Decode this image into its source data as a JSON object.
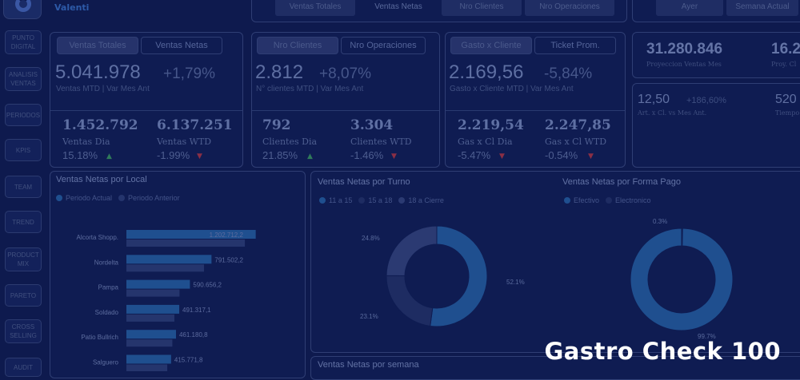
{
  "brand": {
    "name": "Valenti"
  },
  "sidebar": {
    "items": [
      {
        "label": "PUNTO DIGITAL"
      },
      {
        "label": "ANALISIS VENTAS"
      },
      {
        "label": "PERIODOS"
      },
      {
        "label": "KPIS"
      },
      {
        "label": "TEAM"
      },
      {
        "label": "TREND"
      },
      {
        "label": "PRODUCT MIX"
      },
      {
        "label": "PARETO"
      },
      {
        "label": "CROSS SELLING"
      },
      {
        "label": "AUDIT"
      }
    ]
  },
  "top_tabs": [
    "Ventas Totales",
    "Ventas Netas",
    "Nro Clientes",
    "Nro Operaciones",
    "Ayer",
    "Semana Actual"
  ],
  "kpi_ventas": {
    "tabs": [
      "Ventas Totales",
      "Ventas Netas"
    ],
    "value": "5.041.978",
    "variation": "+1,79%",
    "caption": "Ventas MTD | Var Mes Ant",
    "left": {
      "value": "1.452.792",
      "label": "Ventas Dia",
      "pct": "15.18%"
    },
    "right": {
      "value": "6.137.251",
      "label": "Ventas WTD",
      "pct": "-1.99%"
    }
  },
  "kpi_clientes": {
    "tabs": [
      "Nro Clientes",
      "Nro Operaciones"
    ],
    "value": "2.812",
    "variation": "+8,07%",
    "caption": "N° clientes MTD | Var Mes Ant",
    "left": {
      "value": "792",
      "label": "Clientes Dia",
      "pct": "21.85%"
    },
    "right": {
      "value": "3.304",
      "label": "Clientes WTD",
      "pct": "-1.46%"
    }
  },
  "kpi_gasto": {
    "tabs": [
      "Gasto x Cliente",
      "Ticket Prom."
    ],
    "value": "2.169,56",
    "variation": "-5,84%",
    "caption": "Gasto x Cliente MTD | Var Mes Ant",
    "left": {
      "value": "2.219,54",
      "label": "Gas x Cl Dia",
      "pct": "-5.47%"
    },
    "right": {
      "value": "2.247,85",
      "label": "Gas x Cl WTD",
      "pct": "-0.54%"
    }
  },
  "projection": {
    "value1": "31.280.846",
    "label1": "Proyeccion Ventas Mes",
    "value2": "16.2",
    "label2": "Proy. Cl",
    "value3": "12,50",
    "var3": "+186,60%",
    "label3": "Art. x Cl. vs Mes Ant.",
    "value4": "520",
    "label4": "Tiempo"
  },
  "colors": {
    "up": "#2f7a5a",
    "down": "#8a2f45",
    "accent": "#1f4f8f",
    "bar_prev": "#25356d"
  },
  "local_panel": {
    "title": "Ventas Netas por Local",
    "legend": [
      "Periodo Actual",
      "Periodo Anterior"
    ]
  },
  "turno_panel": {
    "title": "Ventas Netas por Turno",
    "legend": [
      "11 a 15",
      "15 a 18",
      "18 a Cierre"
    ],
    "labels": [
      "24.8%",
      "52.1%",
      "23.1%"
    ]
  },
  "pago_panel": {
    "title": "Ventas Netas por Forma Pago",
    "legend": [
      "Efectivo",
      "Electronico"
    ],
    "labels": [
      "0.3%",
      "99.7%"
    ]
  },
  "semana_panel": {
    "title": "Ventas Netas por semana"
  },
  "chart_data": [
    {
      "type": "bar",
      "title": "Ventas Netas por Local",
      "categories": [
        "Alcorta Shopp.",
        "Nordelta",
        "Pampa",
        "Soldado",
        "Patio Bullrich",
        "Salguero"
      ],
      "series": [
        {
          "name": "Periodo Actual",
          "values": [
            1202712.2,
            791502.2,
            590656.2,
            491317.1,
            461180.8,
            415771.8
          ],
          "labels": [
            "1.202.712,2",
            "791.502,2",
            "590.656,2",
            "491.317,1",
            "461.180,8",
            "415.771,8"
          ]
        },
        {
          "name": "Periodo Anterior",
          "values": [
            1160000,
            760000,
            520000,
            470000,
            450000,
            400000
          ]
        }
      ]
    },
    {
      "type": "pie",
      "title": "Ventas Netas por Turno",
      "categories": [
        "11 a 15",
        "15 a 18",
        "18 a Cierre"
      ],
      "values": [
        24.8,
        52.1,
        23.1
      ]
    },
    {
      "type": "pie",
      "title": "Ventas Netas por Forma Pago",
      "categories": [
        "Efectivo",
        "Electronico"
      ],
      "values": [
        0.3,
        99.7
      ]
    }
  ],
  "watermark": "Gastro Check 100"
}
